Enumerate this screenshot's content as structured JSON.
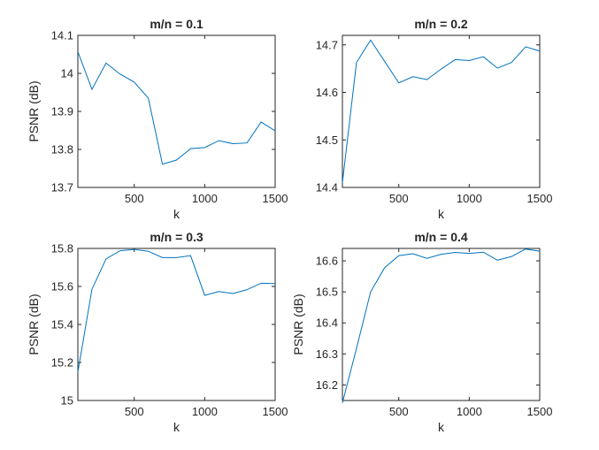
{
  "chart_data": [
    {
      "type": "line",
      "title": "m/n = 0.1",
      "xlabel": "k",
      "ylabel": "PSNR (dB)",
      "xlim": [
        100,
        1500
      ],
      "ylim": [
        13.7,
        14.1
      ],
      "xticks": [
        500,
        1000,
        1500
      ],
      "xtick_labels": [
        "500",
        "1000",
        "1500"
      ],
      "yticks": [
        13.7,
        13.8,
        13.9,
        14.0,
        14.1
      ],
      "ytick_labels": [
        "13.7",
        "13.8",
        "13.9",
        "14",
        "14.1"
      ],
      "grid": false,
      "color": "#0072bd",
      "x": [
        100,
        200,
        300,
        400,
        500,
        600,
        700,
        800,
        900,
        1000,
        1100,
        1200,
        1300,
        1400,
        1500
      ],
      "y": [
        14.057,
        13.958,
        14.027,
        13.998,
        13.977,
        13.935,
        13.761,
        13.772,
        13.802,
        13.805,
        13.823,
        13.815,
        13.817,
        13.872,
        13.849
      ]
    },
    {
      "type": "line",
      "title": "m/n = 0.2",
      "xlabel": "k",
      "ylabel": "",
      "xlim": [
        100,
        1500
      ],
      "ylim": [
        14.4,
        14.72
      ],
      "xticks": [
        500,
        1000,
        1500
      ],
      "xtick_labels": [
        "500",
        "1000",
        "1500"
      ],
      "yticks": [
        14.4,
        14.5,
        14.6,
        14.7
      ],
      "ytick_labels": [
        "14.4",
        "14.5",
        "14.6",
        "14.7"
      ],
      "grid": false,
      "color": "#0072bd",
      "x": [
        100,
        200,
        300,
        400,
        500,
        600,
        700,
        800,
        900,
        1000,
        1100,
        1200,
        1300,
        1400,
        1500
      ],
      "y": [
        14.41,
        14.663,
        14.71,
        14.665,
        14.62,
        14.633,
        14.627,
        14.649,
        14.669,
        14.667,
        14.675,
        14.651,
        14.663,
        14.696,
        14.687
      ]
    },
    {
      "type": "line",
      "title": "m/n = 0.3",
      "xlabel": "k",
      "ylabel": "PSNR (dB)",
      "xlim": [
        100,
        1500
      ],
      "ylim": [
        15.0,
        15.8
      ],
      "xticks": [
        500,
        1000,
        1500
      ],
      "xtick_labels": [
        "500",
        "1000",
        "1500"
      ],
      "yticks": [
        15.0,
        15.2,
        15.4,
        15.6,
        15.8
      ],
      "ytick_labels": [
        "15",
        "15.2",
        "15.4",
        "15.6",
        "15.8"
      ],
      "grid": false,
      "color": "#0072bd",
      "x": [
        100,
        200,
        300,
        400,
        500,
        600,
        700,
        800,
        900,
        1000,
        1100,
        1200,
        1300,
        1400,
        1500
      ],
      "y": [
        15.15,
        15.585,
        15.745,
        15.788,
        15.795,
        15.785,
        15.752,
        15.752,
        15.762,
        15.553,
        15.573,
        15.563,
        15.583,
        15.617,
        15.615
      ]
    },
    {
      "type": "line",
      "title": "m/n = 0.4",
      "xlabel": "k",
      "ylabel": "PSNR (dB)",
      "xlim": [
        100,
        1500
      ],
      "ylim": [
        16.15,
        16.64
      ],
      "xticks": [
        500,
        1000,
        1500
      ],
      "xtick_labels": [
        "500",
        "1000",
        "1500"
      ],
      "yticks": [
        16.2,
        16.3,
        16.4,
        16.5,
        16.6
      ],
      "ytick_labels": [
        "16.2",
        "16.3",
        "16.4",
        "16.5",
        "16.6"
      ],
      "grid": false,
      "color": "#0072bd",
      "x": [
        100,
        200,
        300,
        400,
        500,
        600,
        700,
        800,
        900,
        1000,
        1100,
        1200,
        1300,
        1400,
        1500
      ],
      "y": [
        16.142,
        16.318,
        16.5,
        16.578,
        16.617,
        16.623,
        16.608,
        16.621,
        16.627,
        16.624,
        16.628,
        16.602,
        16.614,
        16.638,
        16.631
      ]
    }
  ]
}
